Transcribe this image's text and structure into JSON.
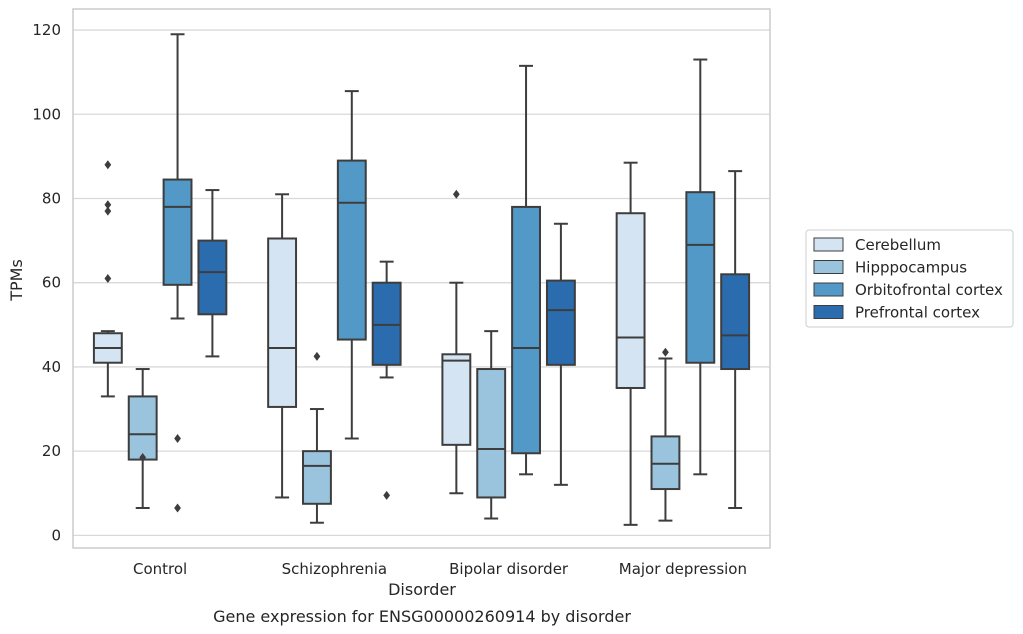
{
  "caption": "Gene expression for ENSG00000260914 by disorder",
  "chart_data": {
    "type": "boxplot",
    "xlabel": "Disorder",
    "ylabel": "TPMs",
    "categories": [
      "Control",
      "Schizophrenia",
      "Bipolar disorder",
      "Major depression"
    ],
    "ylim": [
      -3,
      125
    ],
    "yticks": [
      0,
      20,
      40,
      60,
      80,
      100,
      120
    ],
    "grid": "horizontal",
    "legend_position": "right",
    "series": [
      {
        "name": "Cerebellum",
        "color": "#d5e4f3",
        "boxes": [
          {
            "whislo": 33,
            "q1": 41,
            "med": 44.5,
            "q3": 48,
            "whishi": 48.5,
            "fliers": [
              61,
              77,
              78.5,
              88
            ]
          },
          {
            "whislo": 9,
            "q1": 30.5,
            "med": 44.5,
            "q3": 70.5,
            "whishi": 81,
            "fliers": []
          },
          {
            "whislo": 10,
            "q1": 21.5,
            "med": 41.5,
            "q3": 43,
            "whishi": 60,
            "fliers": [
              81
            ]
          },
          {
            "whislo": 2.5,
            "q1": 35,
            "med": 47,
            "q3": 76.5,
            "whishi": 88.5,
            "fliers": []
          }
        ]
      },
      {
        "name": "Hipppocampus",
        "color": "#9ac4de",
        "boxes": [
          {
            "whislo": 6.5,
            "q1": 18,
            "med": 24,
            "q3": 33,
            "whishi": 39.5,
            "fliers": [
              18.5
            ]
          },
          {
            "whislo": 3,
            "q1": 7.5,
            "med": 16.5,
            "q3": 20,
            "whishi": 30,
            "fliers": [
              42.5
            ]
          },
          {
            "whislo": 4,
            "q1": 9,
            "med": 20.5,
            "q3": 39.5,
            "whishi": 48.5,
            "fliers": []
          },
          {
            "whislo": 3.5,
            "q1": 11,
            "med": 17,
            "q3": 23.5,
            "whishi": 42,
            "fliers": [
              43.5
            ]
          }
        ]
      },
      {
        "name": "Orbitofrontal cortex",
        "color": "#5399c8",
        "boxes": [
          {
            "whislo": 51.5,
            "q1": 59.5,
            "med": 78,
            "q3": 84.5,
            "whishi": 119,
            "fliers": [
              23,
              6.5
            ]
          },
          {
            "whislo": 23,
            "q1": 46.5,
            "med": 79,
            "q3": 89,
            "whishi": 105.5,
            "fliers": []
          },
          {
            "whislo": 14.5,
            "q1": 19.5,
            "med": 44.5,
            "q3": 78,
            "whishi": 111.5,
            "fliers": []
          },
          {
            "whislo": 14.5,
            "q1": 41,
            "med": 69,
            "q3": 81.5,
            "whishi": 113,
            "fliers": []
          }
        ]
      },
      {
        "name": "Prefrontal cortex",
        "color": "#2b6cae",
        "boxes": [
          {
            "whislo": 42.5,
            "q1": 52.5,
            "med": 62.5,
            "q3": 70,
            "whishi": 82,
            "fliers": []
          },
          {
            "whislo": 37.5,
            "q1": 40.5,
            "med": 50,
            "q3": 60,
            "whishi": 65,
            "fliers": [
              9.5
            ]
          },
          {
            "whislo": 12,
            "q1": 40.5,
            "med": 53.5,
            "q3": 60.5,
            "whishi": 74,
            "fliers": []
          },
          {
            "whislo": 6.5,
            "q1": 39.5,
            "med": 47.5,
            "q3": 62,
            "whishi": 86.5,
            "fliers": []
          }
        ]
      }
    ]
  }
}
